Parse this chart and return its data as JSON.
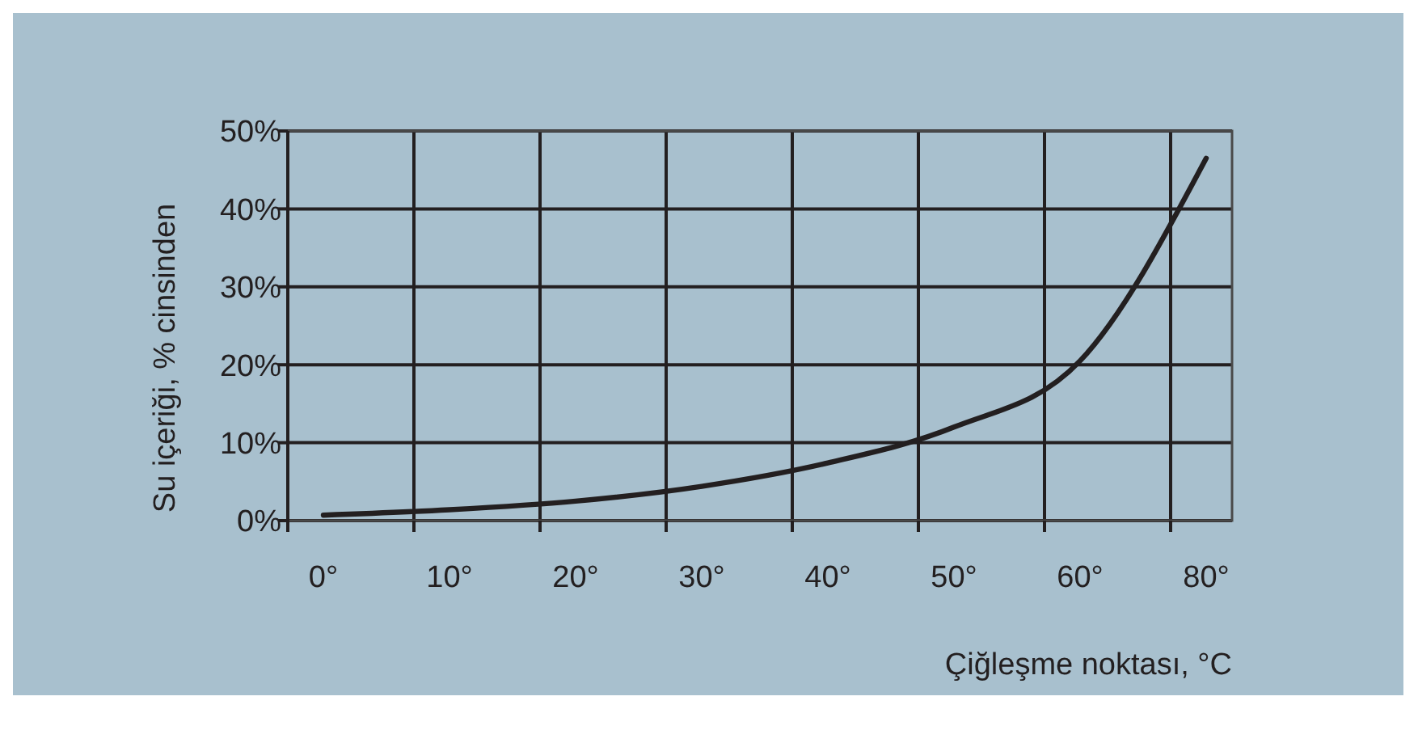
{
  "chart_data": {
    "type": "line",
    "xlabel": "Çiğleşme noktası, °C",
    "ylabel": "Su içeriği, % cinsinden",
    "categories": [
      "0°",
      "10°",
      "20°",
      "30°",
      "40°",
      "50°",
      "60°",
      "80°"
    ],
    "series": [
      {
        "color": "#231f20",
        "values": [
          0.7,
          1.4,
          2.5,
          4.4,
          7.4,
          12.0,
          20.5,
          46.5
        ]
      }
    ],
    "ylim": [
      0,
      50
    ],
    "yticks": [
      {
        "value": 0,
        "label": "0%"
      },
      {
        "value": 10,
        "label": "10%"
      },
      {
        "value": 20,
        "label": "20%"
      },
      {
        "value": 30,
        "label": "30%"
      },
      {
        "value": 40,
        "label": "40%"
      },
      {
        "value": 50,
        "label": "50%"
      }
    ],
    "grid": true,
    "marker": "none",
    "line_style": "solid"
  }
}
